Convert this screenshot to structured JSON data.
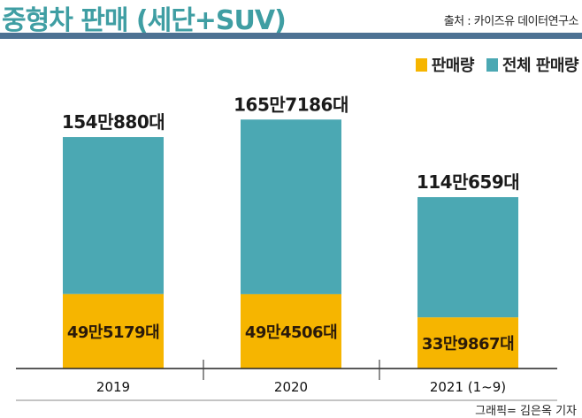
{
  "chart_data": {
    "type": "bar",
    "title": "중형차 판매 (세단+SUV)",
    "source": "출처 : 카이즈유 데이터연구소",
    "credit": "그래픽= 김은옥 기자",
    "categories": [
      "2019",
      "2020",
      "2021 (1~9)"
    ],
    "series": [
      {
        "name": "판매량",
        "color": "#f6b500",
        "values": [
          495179,
          494506,
          339867
        ],
        "labels": [
          "49만5179대",
          "49만4506대",
          "33만9867대"
        ]
      },
      {
        "name": "전체 판매량",
        "color": "#4ba8b3",
        "values": [
          1540880,
          1657186,
          1140659
        ],
        "labels": [
          "154만880대",
          "165만7186대",
          "114만659대"
        ]
      }
    ],
    "xlabel": "",
    "ylabel": "",
    "ylim": [
      0,
      1700000
    ],
    "legend": "top-right",
    "grid": false
  }
}
